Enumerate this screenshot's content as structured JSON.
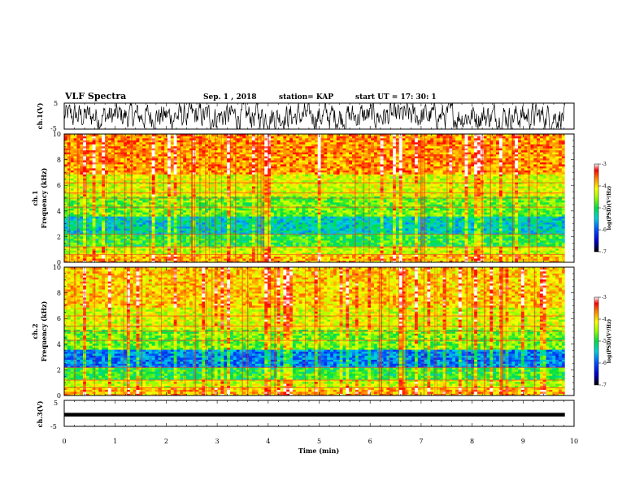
{
  "header": {
    "title": "VLF Spectra",
    "date": "Sep. 1 , 2018",
    "station": "station= KAP",
    "start": "start  UT =   17: 30: 1"
  },
  "chart_data": [
    {
      "type": "line",
      "panel": "ch1-waveform",
      "ylabel": "ch.1(V)",
      "ylim": [
        -5,
        5
      ],
      "yticks": [
        "5",
        "-5"
      ],
      "xlim": [
        0,
        10
      ],
      "description_values": "noisy waveform oscillating roughly between -5 and 5 V over 0–9.8 min"
    },
    {
      "type": "heatmap",
      "panel": "ch1-spectrogram",
      "ylabel": "ch.1\nFrequency (kHz)",
      "ylabel_line1": "ch.1",
      "ylabel_line2": "Frequency (kHz)",
      "ylim": [
        0,
        10
      ],
      "yticks": [
        "0",
        "2",
        "4",
        "6",
        "8",
        "10"
      ],
      "xlim": [
        0,
        10
      ],
      "colorbar": {
        "label": "log(PSD)(V²/Hz)",
        "range": [
          -7,
          -3
        ],
        "ticks": [
          "-3",
          "-4",
          "-5",
          "-6",
          "-7"
        ]
      }
    },
    {
      "type": "heatmap",
      "panel": "ch2-spectrogram",
      "ylabel_line1": "ch.2",
      "ylabel_line2": "Frequency (kHz)",
      "ylim": [
        0,
        10
      ],
      "yticks": [
        "0",
        "2",
        "4",
        "6",
        "8",
        "10"
      ],
      "xlim": [
        0,
        10
      ],
      "colorbar": {
        "label": "log(PSD)(V²/Hz)",
        "range": [
          -7,
          -3
        ],
        "ticks": [
          "-3",
          "-4",
          "-5",
          "-6",
          "-7"
        ]
      }
    },
    {
      "type": "line",
      "panel": "ch3-waveform",
      "ylabel": "ch.3(V)",
      "ylim": [
        -5,
        5
      ],
      "yticks": [
        "5",
        "-5"
      ],
      "xlim": [
        0,
        10
      ],
      "xlabel": "Time (min)",
      "xticks": [
        "0",
        "1",
        "2",
        "3",
        "4",
        "5",
        "6",
        "7",
        "8",
        "9",
        "10"
      ],
      "level": -0.5
    }
  ]
}
